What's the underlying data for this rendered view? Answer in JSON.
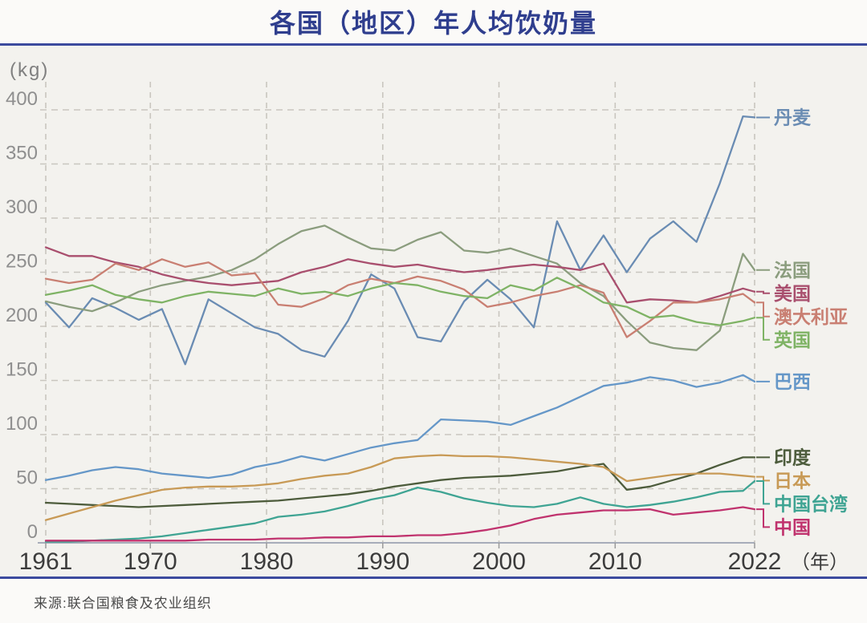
{
  "title": "各国（地区）年人均饮奶量",
  "source": "来源:联合国粮食及农业组织",
  "chart_data": {
    "type": "line",
    "title": "各国（地区）年人均饮奶量",
    "y_axis": {
      "unit": "(kg)",
      "ticks": [
        0,
        50,
        100,
        150,
        200,
        250,
        300,
        350,
        400
      ],
      "range": [
        0,
        430
      ],
      "grid": "dashed"
    },
    "x_axis": {
      "unit": "（年）",
      "ticks": [
        1961,
        1970,
        1980,
        1990,
        2000,
        2010,
        2022
      ],
      "range": [
        1961,
        2022
      ],
      "grid": "dashed"
    },
    "legend_position": "right",
    "years": [
      1961,
      1963,
      1965,
      1967,
      1969,
      1971,
      1973,
      1975,
      1977,
      1979,
      1981,
      1983,
      1985,
      1987,
      1989,
      1991,
      1993,
      1995,
      1997,
      1999,
      2001,
      2003,
      2005,
      2007,
      2009,
      2011,
      2013,
      2015,
      2017,
      2019,
      2021,
      2022
    ],
    "series": [
      {
        "name": "丹麦",
        "en": "denmark",
        "color": "#6a8cb3",
        "values": [
          222,
          199,
          226,
          217,
          206,
          216,
          165,
          225,
          212,
          199,
          193,
          178,
          172,
          205,
          248,
          235,
          190,
          186,
          223,
          243,
          225,
          199,
          297,
          252,
          284,
          250,
          281,
          297,
          278,
          332,
          394,
          393
        ]
      },
      {
        "name": "法国",
        "en": "france",
        "color": "#8b9d7e",
        "values": [
          223,
          218,
          214,
          222,
          232,
          238,
          242,
          246,
          252,
          262,
          276,
          288,
          293,
          282,
          272,
          270,
          280,
          287,
          270,
          268,
          272,
          265,
          258,
          240,
          228,
          205,
          185,
          180,
          178,
          196,
          267,
          252
        ]
      },
      {
        "name": "美国",
        "en": "usa",
        "color": "#a94f6e",
        "values": [
          273,
          265,
          265,
          259,
          255,
          248,
          243,
          240,
          238,
          240,
          242,
          250,
          255,
          262,
          258,
          255,
          257,
          253,
          250,
          252,
          255,
          257,
          255,
          252,
          258,
          222,
          225,
          224,
          222,
          228,
          235,
          232
        ]
      },
      {
        "name": "澳大利亚",
        "en": "australia",
        "color": "#c97f72",
        "values": [
          244,
          240,
          243,
          258,
          252,
          262,
          255,
          259,
          247,
          249,
          220,
          218,
          226,
          238,
          244,
          240,
          246,
          242,
          234,
          218,
          222,
          228,
          232,
          238,
          231,
          190,
          205,
          222,
          222,
          225,
          230,
          222
        ]
      },
      {
        "name": "英国",
        "en": "uk",
        "color": "#7fb365",
        "values": [
          229,
          233,
          238,
          229,
          225,
          222,
          228,
          232,
          230,
          228,
          235,
          230,
          232,
          228,
          235,
          240,
          238,
          232,
          228,
          226,
          238,
          233,
          245,
          235,
          222,
          218,
          208,
          210,
          204,
          201,
          205,
          208
        ]
      },
      {
        "name": "巴西",
        "en": "brazil",
        "color": "#6597c8",
        "values": [
          58,
          62,
          67,
          70,
          68,
          64,
          62,
          60,
          63,
          70,
          74,
          80,
          76,
          82,
          88,
          92,
          95,
          114,
          113,
          112,
          109,
          117,
          125,
          135,
          145,
          148,
          153,
          150,
          144,
          148,
          155,
          149
        ]
      },
      {
        "name": "印度",
        "en": "india",
        "color": "#4d5c3c",
        "values": [
          37,
          36,
          35,
          34,
          33,
          34,
          35,
          36,
          37,
          38,
          39,
          41,
          43,
          45,
          48,
          52,
          55,
          58,
          60,
          61,
          62,
          64,
          66,
          70,
          73,
          49,
          52,
          58,
          64,
          72,
          79,
          79
        ]
      },
      {
        "name": "日本",
        "en": "japan",
        "color": "#c89a56",
        "values": [
          21,
          27,
          33,
          39,
          44,
          49,
          51,
          52,
          52,
          53,
          55,
          59,
          62,
          64,
          70,
          78,
          80,
          81,
          80,
          80,
          79,
          77,
          75,
          73,
          70,
          57,
          60,
          63,
          64,
          64,
          62,
          61
        ]
      },
      {
        "name": "中国台湾",
        "en": "taiwan",
        "color": "#3fa493",
        "values": [
          1,
          1,
          2,
          3,
          4,
          6,
          9,
          12,
          15,
          18,
          24,
          26,
          29,
          34,
          40,
          44,
          51,
          47,
          41,
          37,
          34,
          33,
          36,
          42,
          36,
          33,
          35,
          38,
          42,
          47,
          48,
          57
        ]
      },
      {
        "name": "中国",
        "en": "china",
        "color": "#c0336e",
        "values": [
          2,
          2,
          2,
          2,
          2,
          2,
          2,
          3,
          3,
          3,
          4,
          4,
          5,
          5,
          6,
          6,
          7,
          7,
          9,
          12,
          16,
          22,
          26,
          28,
          30,
          30,
          31,
          26,
          28,
          30,
          33,
          31
        ]
      }
    ]
  }
}
